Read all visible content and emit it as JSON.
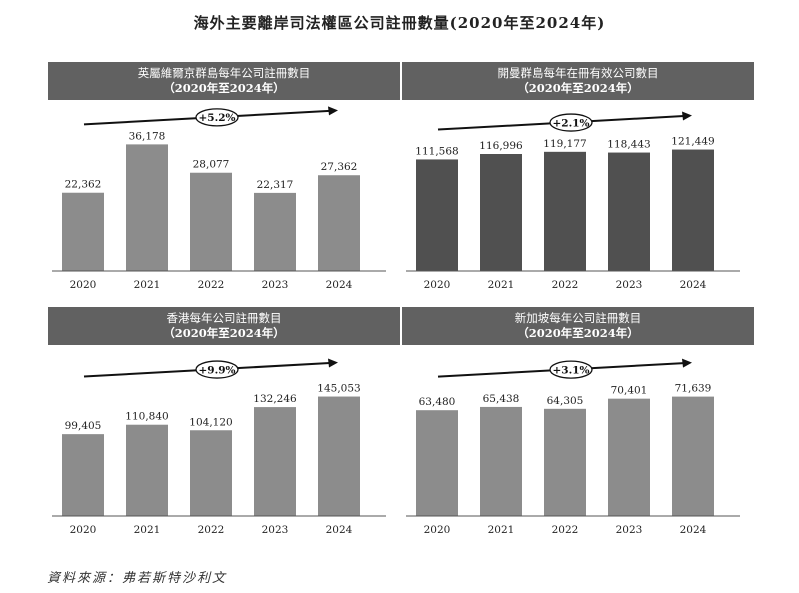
{
  "title": "海外主要離岸司法權區公司註冊數量(2020年至2024年)",
  "source": "資料來源：弗若斯特沙利文",
  "chart_data": [
    {
      "type": "bar",
      "title": "英屬維爾京群島每年公司註冊數目",
      "subtitle": "（2020年至2024年）",
      "categories": [
        "2020",
        "2021",
        "2022",
        "2023",
        "2024"
      ],
      "values": [
        22362,
        36178,
        28077,
        22317,
        27362
      ],
      "value_labels": [
        "22,362",
        "36,178",
        "28,077",
        "22,317",
        "27,362"
      ],
      "cagr": "+5.2%",
      "ylim": [
        0,
        40000
      ],
      "bar_color": "#8c8c8c"
    },
    {
      "type": "bar",
      "title": "開曼群島每年在冊有效公司數目",
      "subtitle": "（2020年至2024年）",
      "categories": [
        "2020",
        "2021",
        "2022",
        "2023",
        "2024"
      ],
      "values": [
        111568,
        116996,
        119177,
        118443,
        121449
      ],
      "value_labels": [
        "111,568",
        "116,996",
        "119,177",
        "118,443",
        "121,449"
      ],
      "cagr": "+2.1%",
      "ylim": [
        0,
        140000
      ],
      "bar_color": "#505050"
    },
    {
      "type": "bar",
      "title": "香港每年公司註冊數目",
      "subtitle": "（2020年至2024年）",
      "categories": [
        "2020",
        "2021",
        "2022",
        "2023",
        "2024"
      ],
      "values": [
        99405,
        110840,
        104120,
        132246,
        145053
      ],
      "value_labels": [
        "99,405",
        "110,840",
        "104,120",
        "132,246",
        "145,053"
      ],
      "cagr": "+9.9%",
      "ylim": [
        0,
        170000
      ],
      "bar_color": "#8c8c8c"
    },
    {
      "type": "bar",
      "title": "新加坡每年公司註冊數目",
      "subtitle": "（2020年至2024年）",
      "categories": [
        "2020",
        "2021",
        "2022",
        "2023",
        "2024"
      ],
      "values": [
        63480,
        65438,
        64305,
        70401,
        71639
      ],
      "value_labels": [
        "63,480",
        "65,438",
        "64,305",
        "70,401",
        "71,639"
      ],
      "cagr": "+3.1%",
      "ylim": [
        0,
        84000
      ],
      "bar_color": "#8c8c8c"
    }
  ]
}
